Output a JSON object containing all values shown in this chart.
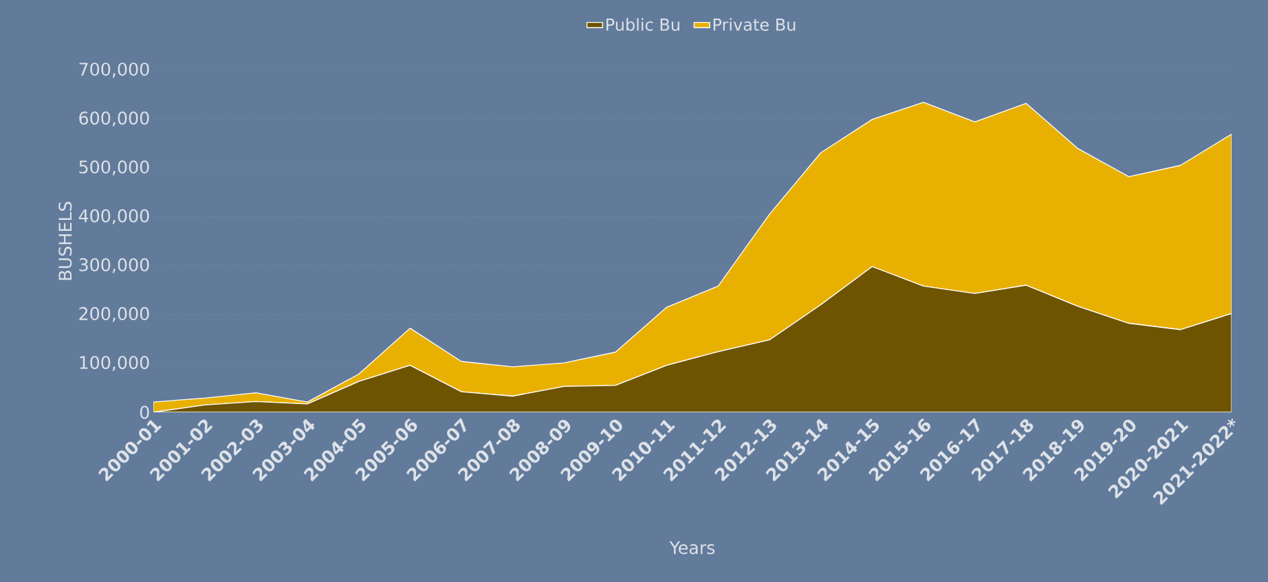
{
  "chart_data": {
    "type": "area",
    "stacked": true,
    "xlabel": "Years",
    "ylabel": "BUSHELS",
    "categories": [
      "2000-01",
      "2001-02",
      "2002-03",
      "2003-04",
      "2004-05",
      "2005-06",
      "2006-07",
      "2007-08",
      "2008-09",
      "2009-10",
      "2010-11",
      "2011-12",
      "2012-13",
      "2013-14",
      "2014-15",
      "2015-16",
      "2016-17",
      "2017-18",
      "2018-19",
      "2019-20",
      "2020-2021",
      "2021-2022*"
    ],
    "series": [
      {
        "name": "Public Bu",
        "color": "#6e5400",
        "values": [
          0,
          15000,
          22000,
          17000,
          63000,
          96000,
          42000,
          33000,
          53000,
          55000,
          96000,
          124000,
          148000,
          220000,
          298000,
          258000,
          243000,
          260000,
          217000,
          182000,
          169000,
          202000
        ]
      },
      {
        "name": "Private Bu",
        "color": "#e8b000",
        "values": [
          21000,
          14000,
          18000,
          4000,
          15000,
          76000,
          62000,
          60000,
          48000,
          68000,
          119000,
          134000,
          257000,
          311000,
          301000,
          376000,
          351000,
          372000,
          323000,
          300000,
          336000,
          367000
        ]
      }
    ],
    "ylim": [
      0,
      700000
    ],
    "yticks": [
      {
        "value": 0,
        "label": "0"
      },
      {
        "value": 100000,
        "label": "100,000"
      },
      {
        "value": 200000,
        "label": "200,000"
      },
      {
        "value": 300000,
        "label": "300,000"
      },
      {
        "value": 400000,
        "label": "400,000"
      },
      {
        "value": 500000,
        "label": "500,000"
      },
      {
        "value": 600000,
        "label": "600,000"
      },
      {
        "value": 700000,
        "label": "700,000"
      }
    ],
    "grid": "y",
    "legend": "top"
  }
}
